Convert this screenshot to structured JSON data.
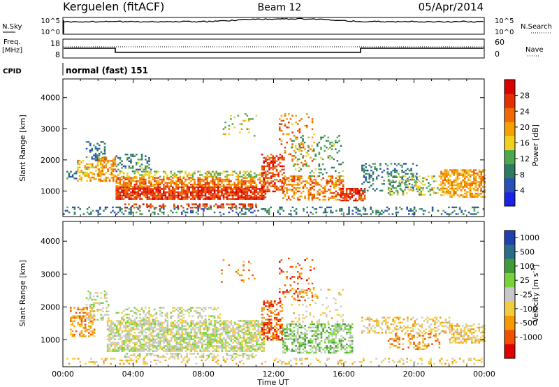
{
  "header": {
    "station": "Kerguelen (fitACF)",
    "beam": "Beam 12",
    "date": "05/Apr/2014"
  },
  "panels": {
    "nsky": {
      "label": "N.Sky",
      "ticks": [
        "10^5",
        "10^0"
      ],
      "right_ticks": [
        "10^5",
        "10^0"
      ],
      "right_label": "N.Search"
    },
    "freq": {
      "label_line1": "Freq.",
      "label_line2": "[MHz]",
      "ticks": [
        "18",
        "8"
      ],
      "right_ticks": [
        "60",
        "0"
      ],
      "right_label": "Nave"
    },
    "cpid": {
      "label": "CPID",
      "value": "normal (fast) 151"
    }
  },
  "colors": {
    "power": [
      "#1a22e6",
      "#2a4fb8",
      "#2e7a60",
      "#4da84d",
      "#f0d020",
      "#f5a000",
      "#ef6a00",
      "#e23000",
      "#d90000"
    ],
    "velocity": [
      "#e00000",
      "#f05000",
      "#f59a00",
      "#f2cc40",
      "#c8c8c8",
      "#7ad23a",
      "#3f9a3a",
      "#2a6c8a",
      "#2040b0"
    ]
  },
  "chart_data": [
    {
      "type": "heatmap",
      "title": "",
      "ylabel": "Slant Range [km]",
      "xlabel": "",
      "ylim": [
        180,
        4600
      ],
      "y_ticks": [
        "1000",
        "2000",
        "3000",
        "4000"
      ],
      "x_range_hours": [
        0,
        24
      ],
      "colorbar": {
        "label": "Power [dB]",
        "ticks": [
          "28",
          "24",
          "20",
          "16",
          "12",
          "8",
          "4"
        ],
        "range": [
          0,
          32
        ]
      },
      "series": [
        {
          "t0": 0.2,
          "t1": 0.8,
          "r0": 1350,
          "r1": 1700,
          "v": 8,
          "density": 0.35
        },
        {
          "t0": 0.8,
          "t1": 2.0,
          "r0": 1300,
          "r1": 2000,
          "v": 18,
          "density": 0.45
        },
        {
          "t0": 1.3,
          "t1": 2.4,
          "r0": 2000,
          "r1": 2600,
          "v": 8,
          "density": 0.4
        },
        {
          "t0": 2.0,
          "t1": 3.0,
          "r0": 1300,
          "r1": 2100,
          "v": 20,
          "density": 0.6
        },
        {
          "t0": 3.0,
          "t1": 11.5,
          "r0": 750,
          "r1": 1150,
          "v": 27,
          "density": 0.85
        },
        {
          "t0": 3.0,
          "t1": 11.5,
          "r0": 1150,
          "r1": 1450,
          "v": 22,
          "density": 0.7
        },
        {
          "t0": 3.0,
          "t1": 11.5,
          "r0": 1450,
          "r1": 1650,
          "v": 15,
          "density": 0.45
        },
        {
          "t0": 3.0,
          "t1": 5.0,
          "r0": 1650,
          "r1": 2200,
          "v": 10,
          "density": 0.3
        },
        {
          "t0": 3.5,
          "t1": 11.0,
          "r0": 450,
          "r1": 600,
          "v": 26,
          "density": 0.4
        },
        {
          "t0": 9.0,
          "t1": 11.0,
          "r0": 2700,
          "r1": 3500,
          "v": 16,
          "density": 0.08
        },
        {
          "t0": 11.3,
          "t1": 12.6,
          "r0": 1000,
          "r1": 2200,
          "v": 26,
          "density": 0.5
        },
        {
          "t0": 12.3,
          "t1": 14.3,
          "r0": 1800,
          "r1": 3500,
          "v": 22,
          "density": 0.12
        },
        {
          "t0": 12.5,
          "t1": 16.0,
          "r0": 700,
          "r1": 1500,
          "v": 22,
          "density": 0.45
        },
        {
          "t0": 13.0,
          "t1": 16.0,
          "r0": 1500,
          "r1": 2800,
          "v": 12,
          "density": 0.15
        },
        {
          "t0": 15.8,
          "t1": 17.2,
          "r0": 700,
          "r1": 1100,
          "v": 27,
          "density": 0.7
        },
        {
          "t0": 17.0,
          "t1": 20.2,
          "r0": 1000,
          "r1": 1900,
          "v": 8,
          "density": 0.3
        },
        {
          "t0": 18.5,
          "t1": 21.5,
          "r0": 900,
          "r1": 1500,
          "v": 14,
          "density": 0.35
        },
        {
          "t0": 21.5,
          "t1": 24.0,
          "r0": 800,
          "r1": 1700,
          "v": 20,
          "density": 0.65
        },
        {
          "t0": 0.0,
          "t1": 24.0,
          "r0": 250,
          "r1": 500,
          "v": 8,
          "density": 0.25
        }
      ]
    },
    {
      "type": "heatmap",
      "title": "",
      "ylabel": "Slant Range [km]",
      "xlabel": "Time UT",
      "ylim": [
        180,
        4600
      ],
      "y_ticks": [
        "1000",
        "2000",
        "3000",
        "4000"
      ],
      "x_range_hours": [
        0,
        24
      ],
      "x_ticks": [
        "00:00",
        "04:00",
        "08:00",
        "12:00",
        "16:00",
        "20:00",
        "00:00"
      ],
      "colorbar": {
        "label": "Velocity [m s-1]",
        "ticks": [
          "1000",
          "500",
          "100",
          "25",
          "-25",
          "-100",
          "-500",
          "-1000"
        ]
      },
      "series": [
        {
          "t0": 0.4,
          "t1": 1.8,
          "r0": 1100,
          "r1": 2000,
          "v": 2,
          "density": 0.45
        },
        {
          "t0": 1.3,
          "t1": 2.6,
          "r0": 1600,
          "r1": 2500,
          "v": 4,
          "density": 0.3
        },
        {
          "t0": 2.5,
          "t1": 11.5,
          "r0": 650,
          "r1": 1600,
          "v": 4,
          "density": 0.7
        },
        {
          "t0": 3.0,
          "t1": 9.0,
          "r0": 1600,
          "r1": 2000,
          "v": 4,
          "density": 0.3
        },
        {
          "t0": 3.5,
          "t1": 11.0,
          "r0": 450,
          "r1": 600,
          "v": 4,
          "density": 0.45
        },
        {
          "t0": 9.0,
          "t1": 11.0,
          "r0": 2700,
          "r1": 3500,
          "v": 2,
          "density": 0.07
        },
        {
          "t0": 11.3,
          "t1": 12.5,
          "r0": 1000,
          "r1": 2200,
          "v": 1,
          "density": 0.5
        },
        {
          "t0": 12.3,
          "t1": 14.3,
          "r0": 2200,
          "r1": 3500,
          "v": 1,
          "density": 0.12
        },
        {
          "t0": 12.5,
          "t1": 16.5,
          "r0": 600,
          "r1": 1500,
          "v": 5,
          "density": 0.5
        },
        {
          "t0": 13.0,
          "t1": 16.0,
          "r0": 1500,
          "r1": 2600,
          "v": 3,
          "density": 0.15
        },
        {
          "t0": 17.0,
          "t1": 22.0,
          "r0": 1200,
          "r1": 1700,
          "v": 3,
          "density": 0.4
        },
        {
          "t0": 18.5,
          "t1": 21.5,
          "r0": 700,
          "r1": 1200,
          "v": 2,
          "density": 0.3
        },
        {
          "t0": 22.0,
          "t1": 24.0,
          "r0": 900,
          "r1": 1500,
          "v": 3,
          "density": 0.55
        },
        {
          "t0": 0.0,
          "t1": 24.0,
          "r0": 250,
          "r1": 450,
          "v": 3,
          "density": 0.2
        }
      ]
    }
  ]
}
